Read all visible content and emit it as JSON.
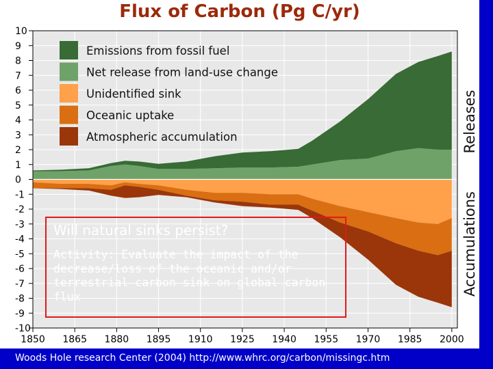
{
  "slide": {
    "footer": "Woods Hole research Center (2004) http://www.whrc.org/carbon/missingc.htm",
    "overlay": {
      "title": "Will natural sinks persist?",
      "body": "Activity: Evaluate the impact of the decrease/loss of the oceanic and/or terrestrial carbon sink on global carbon flux"
    }
  },
  "chart_data": {
    "type": "area",
    "title": "Flux of Carbon (Pg C/yr)",
    "side_labels": {
      "top": "Releases",
      "bottom": "Accumulations"
    },
    "x": [
      1850,
      1860,
      1870,
      1878,
      1883,
      1888,
      1895,
      1905,
      1915,
      1925,
      1935,
      1945,
      1950,
      1960,
      1970,
      1980,
      1988,
      1995,
      2000
    ],
    "x_ticks": [
      "1850",
      "1865",
      "1880",
      "1895",
      "1910",
      "1925",
      "1940",
      "1955",
      "1970",
      "1985",
      "2000"
    ],
    "y_ticks": [
      "10",
      "9",
      "8",
      "7",
      "6",
      "5",
      "4",
      "3",
      "2",
      "1",
      "0",
      "-1",
      "-2",
      "-3",
      "-4",
      "-5",
      "-6",
      "-7",
      "-8",
      "-9",
      "-10"
    ],
    "ylim": [
      -10,
      10
    ],
    "xlim": [
      1850,
      2002
    ],
    "colors": {
      "fossil": "#386b35",
      "landuse": "#6fa269",
      "unidentified": "#ffa04a",
      "oceanic": "#d96f12",
      "atmospheric": "#9a360a",
      "chart_bg": "#e8e8e8",
      "grid": "#ffffff"
    },
    "series": [
      {
        "name": "Emissions from fossil fuel",
        "key": "fossil",
        "stack": "release",
        "values": [
          0.05,
          0.1,
          0.15,
          0.2,
          0.25,
          0.3,
          0.35,
          0.5,
          0.8,
          1.0,
          1.1,
          1.2,
          1.6,
          2.6,
          4.0,
          5.2,
          5.8,
          6.3,
          6.6
        ]
      },
      {
        "name": "Net release from land-use change",
        "key": "landuse",
        "stack": "release",
        "values": [
          0.55,
          0.55,
          0.6,
          0.9,
          1.0,
          0.9,
          0.7,
          0.7,
          0.75,
          0.8,
          0.8,
          0.85,
          1.0,
          1.3,
          1.4,
          1.9,
          2.1,
          2.0,
          2.0
        ]
      },
      {
        "name": "Unidentified sink",
        "key": "unidentified",
        "stack": "accumulation",
        "values": [
          0.2,
          0.3,
          0.3,
          0.4,
          0.2,
          0.3,
          0.4,
          0.7,
          0.9,
          0.9,
          1.0,
          1.0,
          1.3,
          1.8,
          2.2,
          2.6,
          2.9,
          3.0,
          2.6
        ]
      },
      {
        "name": "Oceanic uptake",
        "key": "oceanic",
        "stack": "accumulation",
        "values": [
          0.4,
          0.3,
          0.3,
          0.3,
          0.2,
          0.2,
          0.3,
          0.4,
          0.5,
          0.6,
          0.7,
          0.7,
          0.8,
          1.1,
          1.3,
          1.7,
          1.9,
          2.1,
          2.2
        ]
      },
      {
        "name": "Atmospheric accumulation",
        "key": "atmospheric",
        "stack": "accumulation",
        "values": [
          0.0,
          0.05,
          0.15,
          0.4,
          0.85,
          0.7,
          0.35,
          0.1,
          0.15,
          0.3,
          0.2,
          0.35,
          0.5,
          1.0,
          1.9,
          2.8,
          3.1,
          3.2,
          3.8
        ]
      }
    ],
    "legend": [
      "Emissions from fossil fuel",
      "Net release from land-use change",
      "Unidentified sink",
      "Oceanic uptake",
      "Atmospheric accumulation"
    ],
    "legend_position": "top-left"
  }
}
